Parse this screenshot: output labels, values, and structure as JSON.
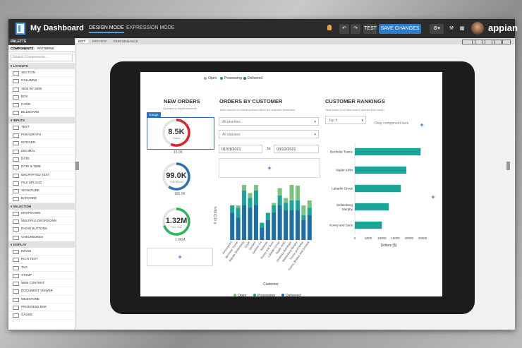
{
  "app": {
    "title": "My Dashboard",
    "mode_design": "DESIGN MODE",
    "mode_expression": "EXPRESSION MODE",
    "test": "TEST",
    "save": "SAVE CHANGES",
    "brand": "appian"
  },
  "palette": {
    "header": "PALETTE",
    "tabs": [
      "COMPONENTS",
      "PATTERNS"
    ],
    "search_placeholder": "Search Components...",
    "sections": [
      {
        "name": "LAYOUTS",
        "items": [
          "SECTION",
          "COLUMNS",
          "SIDE BY SIDE",
          "BOX",
          "CARD",
          "BILLBOARD"
        ]
      },
      {
        "name": "INPUTS",
        "items": [
          "TEXT",
          "PARAGRAPH",
          "INTEGER",
          "DECIMAL",
          "DATE",
          "DATE & TIME",
          "ENCRYPTED TEXT",
          "FILE UPLOAD",
          "SIGNATURE",
          "BARCODE"
        ]
      },
      {
        "name": "SELECTION",
        "items": [
          "DROPDOWN",
          "MULTIPLE DROPDOWN",
          "RADIO BUTTONS",
          "CHECKBOXES"
        ]
      },
      {
        "name": "DISPLAY",
        "items": [
          "IMAGE",
          "RICH TEXT",
          "TAG",
          "STAMP",
          "WEB CONTENT",
          "DOCUMENT VIEWER",
          "MILESTONE",
          "PROGRESS BAR",
          "GAUGE"
        ]
      }
    ]
  },
  "view_tabs": [
    "EDIT",
    "PREVIEW",
    "PERFORMANCE"
  ],
  "legend": [
    {
      "label": "Open",
      "color": "#7ac47f"
    },
    {
      "label": "Processing",
      "color": "#1aa598"
    },
    {
      "label": "Delivered",
      "color": "#1d6fa5"
    }
  ],
  "new_orders": {
    "title": "NEW ORDERS",
    "subtitle": "Opened by day/time/month",
    "gauge_tag": "Gauge",
    "gauges": [
      {
        "value": "8.5K",
        "label": "Today",
        "under": "15.0K",
        "percent": 0.57,
        "color": "#d7262d"
      },
      {
        "value": "99.0K",
        "label": "This Month",
        "under": "165.0K",
        "percent": 0.6,
        "color": "#2a6fb7"
      },
      {
        "value": "1.32M",
        "label": "This Year",
        "under": "1.9KM",
        "percent": 0.7,
        "color": "#2eb358"
      }
    ]
  },
  "orders_by_customer": {
    "title": "ORDERS BY CUSTOMER",
    "subtitle": "Total number of orders opened within the selected timeframe",
    "priorities": "All priorities",
    "statuses": "All statuses",
    "date_from": "01/01/2021",
    "to": "to",
    "date_to": "03/22/2021",
    "ylabel": "# of Orders",
    "xlabel": "Customer"
  },
  "customer_rankings": {
    "title": "CUSTOMER RANKINGS",
    "subtitle": "Total value of all new orders opened this month",
    "top": "Top 5",
    "drop": "Drop component here",
    "xlabel": "Dollars ($)"
  },
  "chart_data": [
    {
      "type": "bar",
      "stacked": true,
      "categories": [
        "Anchorpoint",
        "Bechelar Towne",
        "Blanda Stoltenberg",
        "Doyle",
        "Gerlach",
        "Goldner Inc",
        "Kemmer",
        "Kovey and Sons",
        "Labadie Group",
        "Nader Kirlin",
        "Ondricka Bahringer",
        "Stoltenberg Murphy",
        "Towne and Hirthe",
        "Towne, Brakus and Schmidt"
      ],
      "series": [
        {
          "name": "Delivered",
          "values": [
            11,
            9,
            14,
            13,
            14,
            5,
            8,
            11,
            14,
            12,
            12,
            12,
            8,
            10
          ]
        },
        {
          "name": "Processing",
          "values": [
            3,
            4,
            6,
            4,
            6,
            2,
            3,
            3,
            4,
            3,
            4,
            4,
            2,
            3
          ]
        },
        {
          "name": "Open",
          "values": [
            0,
            1,
            4,
            2,
            3,
            0,
            0,
            1,
            3,
            2,
            7,
            6,
            4,
            3
          ]
        }
      ],
      "xlabel": "Customer",
      "ylabel": "# of Orders",
      "legend": "bottom"
    },
    {
      "type": "bar",
      "orientation": "horizontal",
      "categories": [
        "Bechelar Towne",
        "Nader Kirlin",
        "Labadie Group",
        "Stoltenberg Murphy",
        "Kovey and Sons"
      ],
      "values": [
        24300,
        19000,
        17000,
        12500,
        10000
      ],
      "xticks": [
        "0",
        "5000",
        "10000",
        "15000",
        "20000",
        "25000"
      ],
      "xlim": [
        0,
        25000
      ],
      "xlabel": "Dollars ($)",
      "color": "#1aa598"
    }
  ]
}
